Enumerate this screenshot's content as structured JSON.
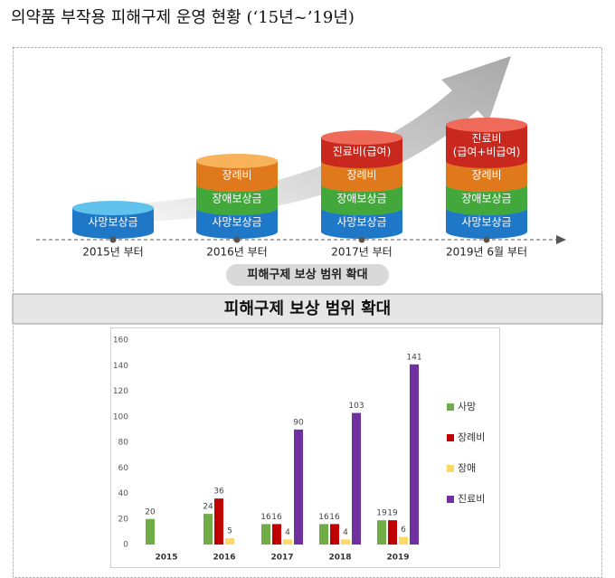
{
  "title": "의약품 부작용 피해구제 운영 현황 (‘15년~’19년)",
  "infographic": {
    "columns": [
      {
        "label": "2015년 부터",
        "layers": [
          [
            "사망보상금"
          ]
        ]
      },
      {
        "label": "2016년 부터",
        "layers": [
          [
            "사망보상금"
          ],
          [
            "장애보상금"
          ],
          [
            "장례비"
          ]
        ]
      },
      {
        "label": "2017년 부터",
        "layers": [
          [
            "사망보상금"
          ],
          [
            "장애보상금"
          ],
          [
            "장례비"
          ],
          [
            "진료비(급여)"
          ]
        ]
      },
      {
        "label": "2019년 6월 부터",
        "layers": [
          [
            "사망보상금"
          ],
          [
            "장애보상금"
          ],
          [
            "장례비"
          ],
          [
            "진료비",
            "(급여+비급여)"
          ]
        ]
      }
    ],
    "caption": "피해구제 보상 범위 확대"
  },
  "section_title": "피해구제 보상 범위 확대",
  "chart_data": {
    "type": "bar",
    "categories": [
      "2015",
      "2016",
      "2017",
      "2018",
      "2019"
    ],
    "series": [
      {
        "name": "사망",
        "color": "#70ad47",
        "values": [
          20,
          24,
          16,
          16,
          19
        ]
      },
      {
        "name": "장례비",
        "color": "#c00000",
        "values": [
          null,
          36,
          16,
          16,
          19
        ]
      },
      {
        "name": "장애",
        "color": "#ffd966",
        "values": [
          null,
          5,
          4,
          4,
          6
        ]
      },
      {
        "name": "진료비",
        "color": "#7030a0",
        "values": [
          null,
          null,
          90,
          103,
          141
        ]
      }
    ],
    "ylim": [
      0,
      160
    ],
    "yticks": [
      0,
      20,
      40,
      60,
      80,
      100,
      120,
      140,
      160
    ],
    "grid": false,
    "legend": "right"
  }
}
